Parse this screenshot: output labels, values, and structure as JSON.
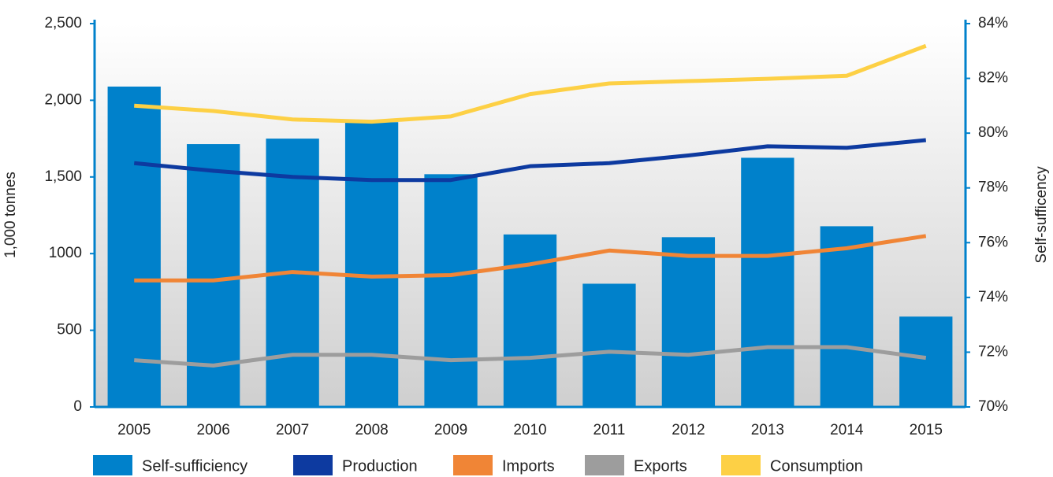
{
  "chart_data": {
    "type": "bar",
    "categories": [
      "2005",
      "2006",
      "2007",
      "2008",
      "2009",
      "2010",
      "2011",
      "2012",
      "2013",
      "2014",
      "2015"
    ],
    "series": [
      {
        "name": "Self-sufficiency",
        "type": "bar",
        "axis": "y2",
        "color": "#0081cb",
        "values": [
          81.7,
          79.6,
          79.8,
          80.4,
          78.5,
          76.3,
          74.5,
          76.2,
          79.1,
          76.6,
          73.3
        ]
      },
      {
        "name": "Production",
        "type": "line",
        "color": "#0d3aa0",
        "values": [
          1590,
          1540,
          1500,
          1480,
          1480,
          1570,
          1590,
          1640,
          1700,
          1690,
          1740
        ]
      },
      {
        "name": "Imports",
        "type": "line",
        "color": "#f08536",
        "values": [
          825,
          825,
          880,
          850,
          860,
          930,
          1020,
          985,
          985,
          1035,
          1115
        ]
      },
      {
        "name": "Exports",
        "type": "line",
        "color": "#9d9d9d",
        "values": [
          305,
          270,
          340,
          340,
          305,
          320,
          360,
          340,
          390,
          390,
          320
        ]
      },
      {
        "name": "Consumption",
        "type": "line",
        "color": "#fdd045",
        "values": [
          1965,
          1930,
          1875,
          1860,
          1895,
          2040,
          2110,
          2125,
          2140,
          2160,
          2355
        ]
      }
    ],
    "ylabel": "1,000 tonnes",
    "y2label": "Self-sufficency",
    "ylim": [
      0,
      2500
    ],
    "yticks": [
      0,
      500,
      1000,
      {
        "value": 1500,
        "label": "1,500"
      },
      {
        "value": 2000,
        "label": "2,000"
      },
      {
        "value": 2500,
        "label": "2,500"
      }
    ],
    "y2lim": [
      70,
      84
    ],
    "y2ticks": [
      {
        "value": 70,
        "label": "70%"
      },
      {
        "value": 72,
        "label": "72%"
      },
      {
        "value": 74,
        "label": "74%"
      },
      {
        "value": 76,
        "label": "76%"
      },
      {
        "value": 78,
        "label": "78%"
      },
      {
        "value": 80,
        "label": "80%"
      },
      {
        "value": 82,
        "label": "82%"
      },
      {
        "value": 84,
        "label": "84%"
      }
    ],
    "legend": "bottom",
    "axis_color": "#0081cb"
  }
}
